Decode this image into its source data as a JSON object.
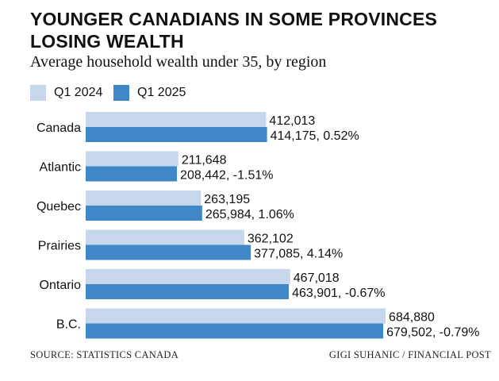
{
  "header": {
    "title": "YOUNGER CANADIANS IN SOME PROVINCES LOSING WEALTH",
    "subtitle": "Average household wealth under 35, by region"
  },
  "legend": [
    {
      "label": "Q1 2024",
      "color": "#c6d7ec"
    },
    {
      "label": "Q1 2025",
      "color": "#3f87c6"
    }
  ],
  "chart_data": {
    "type": "bar",
    "orientation": "horizontal",
    "title": "YOUNGER CANADIANS IN SOME PROVINCES LOSING WEALTH",
    "subtitle": "Average household wealth under 35, by region",
    "categories": [
      "Canada",
      "Atlantic",
      "Quebec",
      "Prairies",
      "Ontario",
      "B.C."
    ],
    "series": [
      {
        "name": "Q1 2024",
        "color": "#c6d7ec",
        "values": [
          412013,
          211648,
          263195,
          362102,
          467018,
          684880
        ],
        "labels": [
          "412,013",
          "211,648",
          "263,195",
          "362,102",
          "467,018",
          "684,880"
        ]
      },
      {
        "name": "Q1 2025",
        "color": "#3f87c6",
        "values": [
          414175,
          208442,
          265984,
          377085,
          463901,
          679502
        ],
        "labels": [
          "414,175, 0.52%",
          "208,442, -1.51%",
          "265,984, 1.06%",
          "377,085, 4.14%",
          "463,901, -0.67%",
          "679,502, -0.79%"
        ]
      }
    ],
    "xlim": [
      0,
      700000
    ],
    "grid": false,
    "legend": "top-left"
  },
  "footer": {
    "source": "SOURCE: STATISTICS CANADA",
    "credit": "GIGI SUHANIC / FINANCIAL POST"
  }
}
